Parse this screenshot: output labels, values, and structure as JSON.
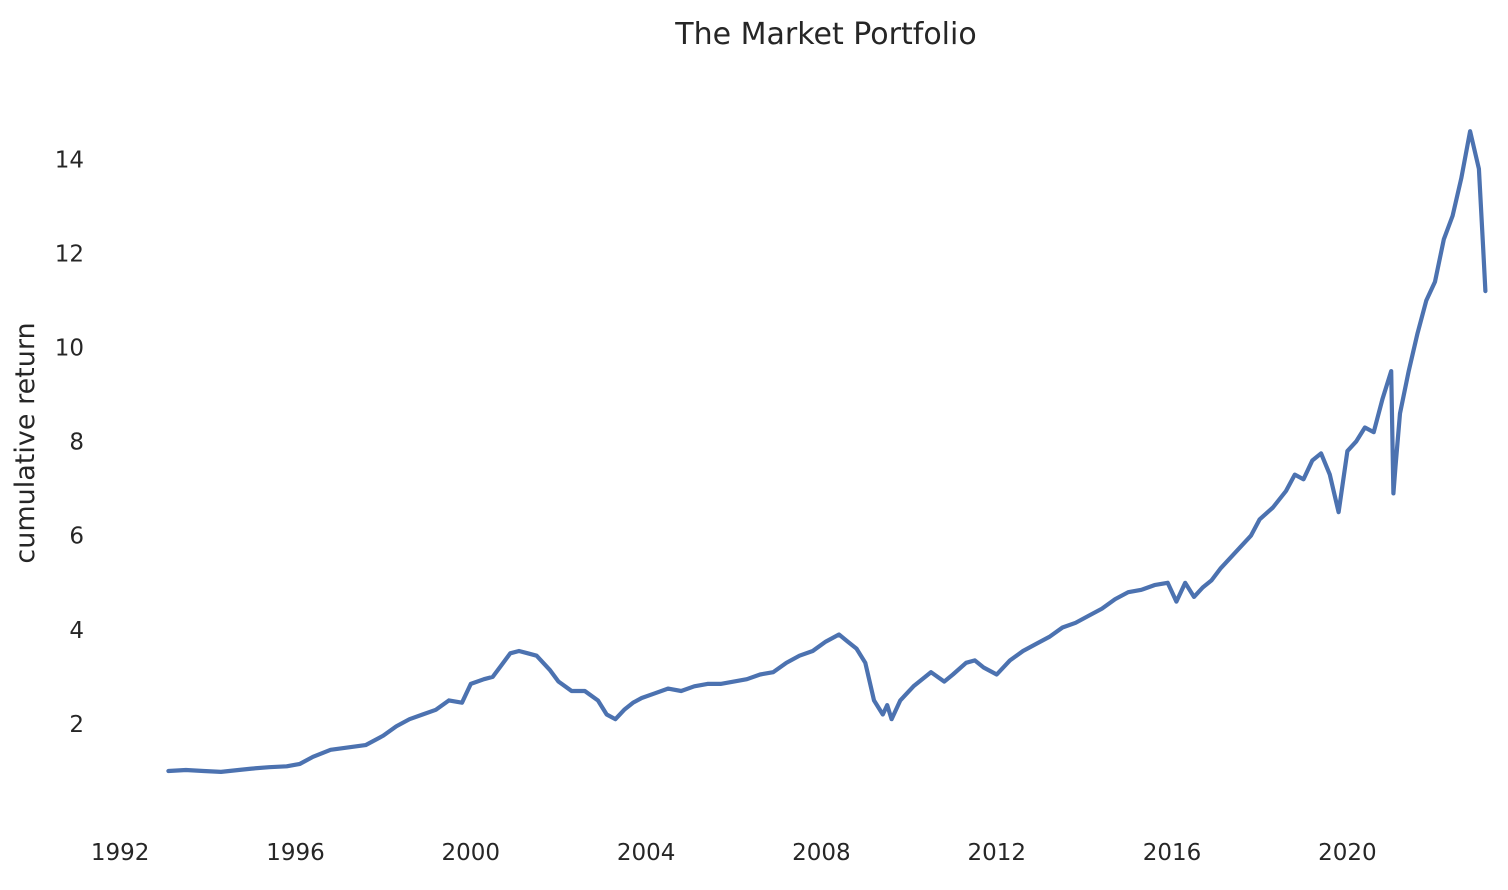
{
  "chart_data": {
    "type": "line",
    "title": "The Market Portfolio",
    "xlabel": "",
    "ylabel": "cumulative return",
    "x_tick_labels": [
      "1992",
      "1996",
      "2000",
      "2004",
      "2008",
      "2012",
      "2016",
      "2020"
    ],
    "x_ticks": [
      1992,
      1996,
      2000,
      2004,
      2008,
      2012,
      2016,
      2020
    ],
    "y_tick_labels": [
      "2",
      "4",
      "6",
      "8",
      "10",
      "12",
      "14"
    ],
    "y_ticks": [
      2,
      4,
      6,
      8,
      10,
      12,
      14
    ],
    "xlim": [
      1991.95,
      2023.3
    ],
    "ylim": [
      0.0,
      15.9
    ],
    "grid": false,
    "series_color": "#4c72b0",
    "series": [
      {
        "x": [
          1993.1,
          1993.5,
          1993.9,
          1994.3,
          1994.7,
          1995.0,
          1995.4,
          1995.8,
          1996.1,
          1996.4,
          1996.8,
          1997.2,
          1997.6,
          1998.0,
          1998.3,
          1998.6,
          1998.9,
          1999.2,
          1999.5,
          1999.8,
          2000.0,
          2000.3,
          2000.5,
          2000.7,
          2000.9,
          2001.1,
          2001.3,
          2001.5,
          2001.8,
          2002.0,
          2002.3,
          2002.6,
          2002.9,
          2003.1,
          2003.3,
          2003.5,
          2003.7,
          2003.9,
          2004.2,
          2004.5,
          2004.8,
          2005.1,
          2005.4,
          2005.7,
          2006.0,
          2006.3,
          2006.6,
          2006.9,
          2007.2,
          2007.5,
          2007.8,
          2008.1,
          2008.4,
          2008.6,
          2008.8,
          2009.0,
          2009.2,
          2009.4,
          2009.5,
          2009.6,
          2009.8,
          2009.9,
          2010.1,
          2010.3,
          2010.5,
          2010.8,
          2011.0,
          2011.3,
          2011.5,
          2011.7,
          2012.0,
          2012.3,
          2012.6,
          2012.9,
          2013.2,
          2013.5,
          2013.8,
          2014.1,
          2014.4,
          2014.7,
          2015.0,
          2015.3,
          2015.6,
          2015.9,
          2016.1,
          2016.3,
          2016.5,
          2016.7,
          2016.9,
          2017.1,
          2017.3,
          2017.5,
          2017.8,
          2018.0,
          2018.3,
          2018.6,
          2018.8,
          2019.0,
          2019.2,
          2019.4,
          2019.6,
          2019.8,
          2020.0,
          2020.2,
          2020.4,
          2020.6,
          2020.8,
          2021.0,
          2021.05,
          2021.1,
          2021.2,
          2021.4,
          2021.6,
          2021.8,
          2022.0,
          2022.2,
          2022.4,
          2022.6,
          2022.8,
          2023.0,
          2023.1,
          2023.15
        ],
        "y": [
          1.0,
          1.02,
          1.0,
          0.98,
          1.02,
          1.05,
          1.08,
          1.1,
          1.15,
          1.3,
          1.45,
          1.5,
          1.55,
          1.75,
          1.95,
          2.1,
          2.2,
          2.3,
          2.5,
          2.45,
          2.85,
          2.95,
          3.0,
          3.25,
          3.5,
          3.55,
          3.5,
          3.45,
          3.15,
          2.9,
          2.7,
          2.7,
          2.5,
          2.2,
          2.1,
          2.3,
          2.45,
          2.55,
          2.65,
          2.75,
          2.7,
          2.8,
          2.85,
          2.85,
          2.9,
          2.95,
          3.05,
          3.1,
          3.3,
          3.45,
          3.55,
          3.75,
          3.9,
          3.75,
          3.6,
          3.3,
          2.5,
          2.2,
          2.4,
          2.1,
          2.5,
          2.6,
          2.8,
          2.95,
          3.1,
          2.9,
          3.05,
          3.3,
          3.35,
          3.2,
          3.05,
          3.35,
          3.55,
          3.7,
          3.85,
          4.05,
          4.15,
          4.3,
          4.45,
          4.65,
          4.8,
          4.85,
          4.95,
          5.0,
          4.6,
          5.0,
          4.7,
          4.9,
          5.05,
          5.3,
          5.5,
          5.7,
          6.0,
          6.35,
          6.6,
          6.95,
          7.3,
          7.2,
          7.6,
          7.75,
          7.3,
          6.5,
          7.8,
          8.0,
          8.3,
          8.2,
          8.9,
          9.5,
          6.9,
          7.5,
          8.6,
          9.5,
          10.3,
          11.0,
          11.4,
          12.3,
          12.8,
          13.6,
          14.6,
          13.8,
          12.1,
          11.2
        ]
      }
    ]
  }
}
